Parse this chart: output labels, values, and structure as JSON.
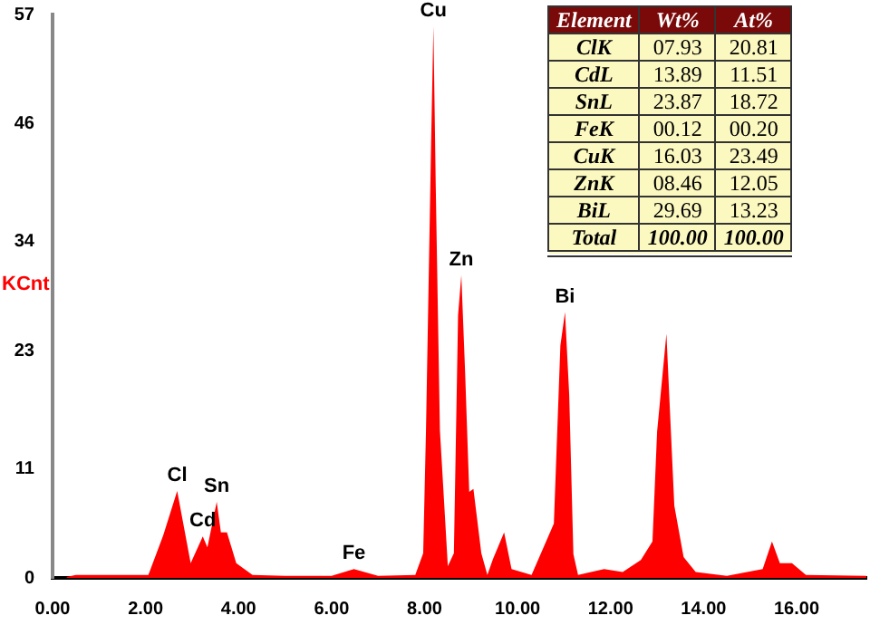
{
  "chart_data": {
    "type": "area",
    "ylabel": "KCnt",
    "x": [
      0.3,
      0.5,
      1.0,
      1.5,
      2.06,
      2.38,
      2.68,
      2.97,
      3.23,
      3.33,
      3.53,
      3.62,
      3.75,
      3.95,
      4.3,
      5.0,
      6.0,
      6.48,
      7.0,
      7.8,
      7.97,
      8.03,
      8.14,
      8.19,
      8.24,
      8.33,
      8.5,
      8.63,
      8.72,
      8.79,
      8.87,
      8.96,
      9.05,
      9.22,
      9.35,
      9.47,
      9.71,
      9.87,
      10.3,
      10.78,
      10.92,
      11.02,
      11.11,
      11.2,
      11.3,
      11.86,
      12.26,
      12.65,
      12.9,
      13.0,
      13.2,
      13.37,
      13.57,
      13.83,
      14.5,
      15.27,
      15.47,
      15.64,
      15.9,
      16.2,
      17.5
    ],
    "series": [
      {
        "color": "#ff0000",
        "values": [
          0.1,
          0.3,
          0.3,
          0.3,
          0.3,
          4.3,
          8.8,
          1.5,
          4.2,
          3.1,
          7.7,
          4.6,
          4.6,
          1.5,
          0.3,
          0.2,
          0.2,
          0.9,
          0.2,
          0.3,
          2.5,
          14.9,
          43.9,
          55.8,
          39.6,
          14.9,
          1.2,
          2.5,
          26.6,
          30.6,
          21,
          8.7,
          9.0,
          2.5,
          0.3,
          1.9,
          4.6,
          0.9,
          0.3,
          5.5,
          23.5,
          26.9,
          18.5,
          2.4,
          0.3,
          0.9,
          0.6,
          1.8,
          3.7,
          14.8,
          24.7,
          7.3,
          2.1,
          0.6,
          0.2,
          0.9,
          3.7,
          1.5,
          1.5,
          0.3,
          0.2
        ]
      }
    ],
    "xlim": [
      0,
      17.5
    ],
    "ylim": [
      0,
      57
    ],
    "xticks": [
      {
        "value": 0,
        "label": "0.00"
      },
      {
        "value": 2,
        "label": "2.00"
      },
      {
        "value": 4,
        "label": "4.00"
      },
      {
        "value": 6,
        "label": "6.00"
      },
      {
        "value": 8,
        "label": "8.00"
      },
      {
        "value": 10,
        "label": "10.00"
      },
      {
        "value": 12,
        "label": "12.00"
      },
      {
        "value": 14,
        "label": "14.00"
      },
      {
        "value": 16,
        "label": "16.00"
      }
    ],
    "yticks": [
      0,
      11,
      23,
      34,
      46,
      57
    ],
    "grid": false,
    "legend": false,
    "annotations": [
      {
        "text": "Cl",
        "x": 2.68,
        "y": 8.8
      },
      {
        "text": "Cd",
        "x": 3.23,
        "y": 4.2
      },
      {
        "text": "Sn",
        "x": 3.53,
        "y": 7.7
      },
      {
        "text": "Fe",
        "x": 6.48,
        "y": 0.9
      },
      {
        "text": "Cu",
        "x": 8.19,
        "y": 55.8
      },
      {
        "text": "Zn",
        "x": 8.79,
        "y": 30.6
      },
      {
        "text": "Bi",
        "x": 11.02,
        "y": 26.9
      },
      "Element",
      "Wt%",
      "At%",
      "ClK",
      "07.93",
      "20.81",
      "CdL",
      "13.89",
      "11.51",
      "SnL",
      "23.87",
      "18.72",
      "FeK",
      "00.12",
      "00.20",
      "CuK",
      "16.03",
      "23.49",
      "ZnK",
      "08.46",
      "12.05",
      "BiL",
      "29.69",
      "13.23",
      "Total",
      "100.00",
      "100.00"
    ]
  }
}
